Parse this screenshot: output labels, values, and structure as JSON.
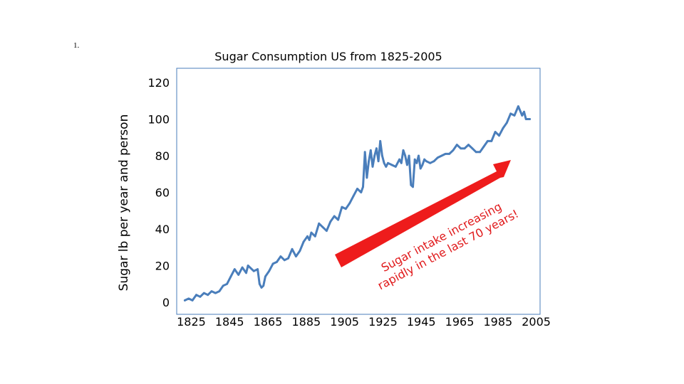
{
  "slide": {
    "number": "1."
  },
  "chart_data": {
    "type": "line",
    "title": "Sugar Consumption US from 1825-2005",
    "xlabel": "",
    "ylabel": "Sugar lb per year and person",
    "xlim": [
      1820,
      2007
    ],
    "ylim": [
      0,
      120
    ],
    "x_ticks": [
      1825,
      1845,
      1865,
      1885,
      1905,
      1925,
      1945,
      1965,
      1985,
      2005
    ],
    "y_ticks": [
      0,
      20,
      40,
      60,
      80,
      100,
      120
    ],
    "grid": false,
    "colors": {
      "line": "#4a7ebb",
      "arrow": "#ee1c1c",
      "frame": "#4a7ebb"
    },
    "series": [
      {
        "x": [
          1822,
          1824,
          1826,
          1828,
          1830,
          1832,
          1834,
          1836,
          1838,
          1840,
          1842,
          1844,
          1846,
          1848,
          1850,
          1852,
          1854,
          1855,
          1856,
          1858,
          1860,
          1861,
          1862,
          1863,
          1864,
          1866,
          1868,
          1870,
          1872,
          1874,
          1876,
          1878,
          1880,
          1882,
          1884,
          1886,
          1887,
          1888,
          1890,
          1892,
          1894,
          1896,
          1898,
          1900,
          1902,
          1904,
          1906,
          1908,
          1910,
          1912,
          1914,
          1915,
          1916,
          1917,
          1918,
          1919,
          1920,
          1921,
          1922,
          1923,
          1924,
          1925,
          1926,
          1927,
          1928,
          1930,
          1932,
          1934,
          1935,
          1936,
          1937,
          1938,
          1939,
          1940,
          1941,
          1942,
          1943,
          1944,
          1945,
          1946,
          1947,
          1948,
          1950,
          1952,
          1954,
          1956,
          1958,
          1960,
          1962,
          1964,
          1966,
          1968,
          1970,
          1972,
          1974,
          1976,
          1978,
          1980,
          1982,
          1984,
          1986,
          1988,
          1990,
          1992,
          1994,
          1996,
          1998,
          1999,
          2000,
          2002
        ],
        "values": [
          1,
          2,
          1,
          4,
          3,
          5,
          4,
          6,
          5,
          6,
          9,
          10,
          14,
          18,
          15,
          19,
          16,
          20,
          19,
          17,
          18,
          10,
          8,
          9,
          14,
          17,
          21,
          22,
          25,
          23,
          24,
          29,
          25,
          28,
          33,
          36,
          34,
          38,
          36,
          43,
          41,
          39,
          44,
          47,
          45,
          52,
          51,
          54,
          58,
          62,
          60,
          63,
          82,
          68,
          77,
          83,
          74,
          80,
          84,
          77,
          88,
          80,
          76,
          74,
          76,
          75,
          74,
          78,
          76,
          83,
          80,
          75,
          80,
          64,
          63,
          78,
          76,
          80,
          73,
          75,
          78,
          77,
          76,
          77,
          79,
          80,
          81,
          81,
          83,
          86,
          84,
          84,
          86,
          84,
          82,
          82,
          85,
          88,
          88,
          93,
          91,
          95,
          98,
          103,
          102,
          107,
          102,
          104,
          100,
          100
        ]
      }
    ],
    "annotation": {
      "line1": "Sugar intake increasing",
      "line2": "rapidly in the last 70 years!"
    }
  }
}
